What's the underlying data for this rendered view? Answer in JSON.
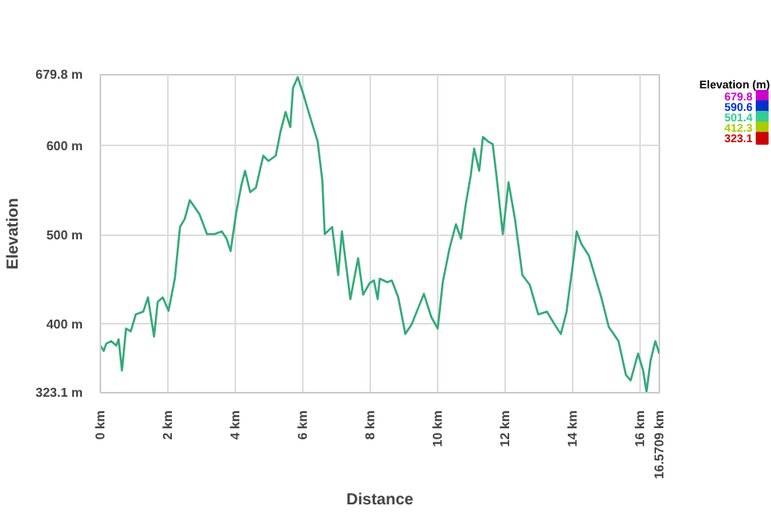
{
  "chart_data": {
    "type": "line",
    "xlabel": "Distance",
    "ylabel": "Elevation",
    "clabel": "Elevation (m)",
    "xlim": [
      0,
      16.5709
    ],
    "ylim": [
      323.1,
      679.8
    ],
    "xticks": [
      {
        "value": 0,
        "label": "0 km"
      },
      {
        "value": 2,
        "label": "2 km"
      },
      {
        "value": 4,
        "label": "4 km"
      },
      {
        "value": 6,
        "label": "6 km"
      },
      {
        "value": 8,
        "label": "8 km"
      },
      {
        "value": 10,
        "label": "10 km"
      },
      {
        "value": 12,
        "label": "12 km"
      },
      {
        "value": 14,
        "label": "14 km"
      },
      {
        "value": 16,
        "label": "16 km"
      },
      {
        "value": 16.5709,
        "label": "16.5709 km"
      }
    ],
    "yticks": [
      {
        "value": 323.1,
        "label": "323.1 m"
      },
      {
        "value": 400,
        "label": "400 m"
      },
      {
        "value": 500,
        "label": "500 m"
      },
      {
        "value": 600,
        "label": "600 m"
      },
      {
        "value": 679.8,
        "label": "679.8 m"
      }
    ],
    "clim": [
      323.1,
      679.8
    ],
    "cticks": [
      679.8,
      590.6,
      501.4,
      412.3,
      323.1
    ],
    "colors": [
      "#cc00cc",
      "#0033cc",
      "#33cc99",
      "#aacc00",
      "#cc0000"
    ],
    "grid": true,
    "marker": "none",
    "line_style": "solid",
    "series": [
      {
        "color": "#33aa77",
        "x": [
          0,
          0.1,
          0.17,
          0.32,
          0.47,
          0.54,
          0.64,
          0.76,
          0.9,
          1.05,
          1.27,
          1.41,
          1.59,
          1.7,
          1.85,
          2.02,
          2.21,
          2.36,
          2.5,
          2.65,
          2.8,
          2.94,
          3.16,
          3.38,
          3.6,
          3.74,
          3.86,
          4.03,
          4.18,
          4.29,
          4.44,
          4.61,
          4.83,
          4.98,
          5.2,
          5.34,
          5.49,
          5.63,
          5.71,
          5.85,
          6.0,
          6.22,
          6.44,
          6.58,
          6.65,
          6.87,
          7.05,
          7.16,
          7.41,
          7.64,
          7.79,
          7.98,
          8.11,
          8.22,
          8.28,
          8.4,
          8.5,
          8.64,
          8.83,
          9.04,
          9.23,
          9.59,
          9.81,
          10.0,
          10.15,
          10.35,
          10.54,
          10.69,
          10.83,
          10.98,
          11.08,
          11.23,
          11.34,
          11.49,
          11.63,
          11.75,
          11.93,
          12.1,
          12.29,
          12.51,
          12.73,
          12.98,
          13.24,
          13.46,
          13.65,
          13.82,
          14.04,
          14.12,
          14.26,
          14.48,
          14.85,
          15.07,
          15.36,
          15.58,
          15.72,
          15.94,
          16.09,
          16.19,
          16.31,
          16.45,
          16.57
        ],
        "values": [
          376,
          370,
          378,
          381,
          376,
          383,
          348,
          395,
          392,
          411,
          414,
          430,
          386,
          425,
          430,
          415,
          452,
          509,
          518,
          539,
          531,
          523,
          501,
          501,
          504,
          496,
          482,
          526,
          556,
          572,
          548,
          553,
          589,
          583,
          589,
          616,
          638,
          621,
          665,
          677,
          660,
          632,
          605,
          561,
          501,
          509,
          455,
          504,
          428,
          474,
          433,
          446,
          449,
          428,
          451,
          449,
          447,
          449,
          430,
          389,
          400,
          434,
          408,
          395,
          447,
          485,
          512,
          496,
          534,
          567,
          597,
          572,
          610,
          605,
          602,
          564,
          501,
          559,
          518,
          455,
          444,
          411,
          414,
          400,
          389,
          414,
          477,
          504,
          490,
          477,
          430,
          397,
          381,
          343,
          337,
          367,
          348,
          324,
          359,
          381,
          367
        ]
      }
    ]
  }
}
